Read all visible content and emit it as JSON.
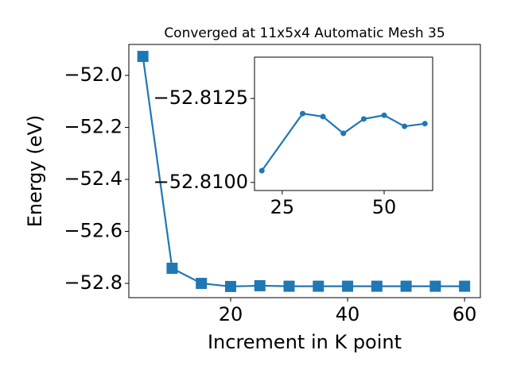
{
  "chart_data": [
    {
      "type": "line",
      "title": "Converged at 11x5x4 Automatic Mesh 35",
      "x_label": "Increment in K point",
      "y_label": "Energy (eV)",
      "x": [
        5,
        10,
        15,
        20,
        25,
        30,
        35,
        40,
        45,
        50,
        55,
        60
      ],
      "series": [
        {
          "color": "#1f77b4",
          "marker": "square",
          "values": [
            -51.927,
            -52.742,
            -52.8,
            -52.812,
            -52.809,
            -52.811,
            -52.811,
            -52.811,
            -52.811,
            -52.811,
            -52.811,
            -52.811
          ]
        }
      ],
      "xlim": [
        2.6,
        62.7
      ],
      "ylim": [
        -52.855,
        -51.881
      ],
      "xticks": [
        20,
        40,
        60
      ],
      "yticks": [
        {
          "value": -52.0,
          "label": "−52.0"
        },
        {
          "value": -52.2,
          "label": "−52.2"
        },
        {
          "value": -52.4,
          "label": "−52.4"
        },
        {
          "value": -52.6,
          "label": "−52.6"
        },
        {
          "value": -52.8,
          "label": "−52.8"
        }
      ]
    },
    {
      "type": "line",
      "x": [
        20,
        30,
        35,
        40,
        45,
        50,
        55,
        60
      ],
      "series": [
        {
          "color": "#1f77b4",
          "marker": "circle",
          "values": [
            -52.81035,
            -52.81205,
            -52.81196,
            -52.81146,
            -52.81189,
            -52.812,
            -52.81167,
            -52.81175
          ]
        }
      ],
      "xlim": [
        18.2,
        61.9
      ],
      "ylim": [
        -52.80976,
        -52.81373
      ],
      "xticks": [
        25,
        50
      ],
      "yticks": [
        {
          "value": -52.8125,
          "label": "−52.8125"
        },
        {
          "value": -52.81,
          "label": "−52.8100"
        }
      ]
    }
  ]
}
